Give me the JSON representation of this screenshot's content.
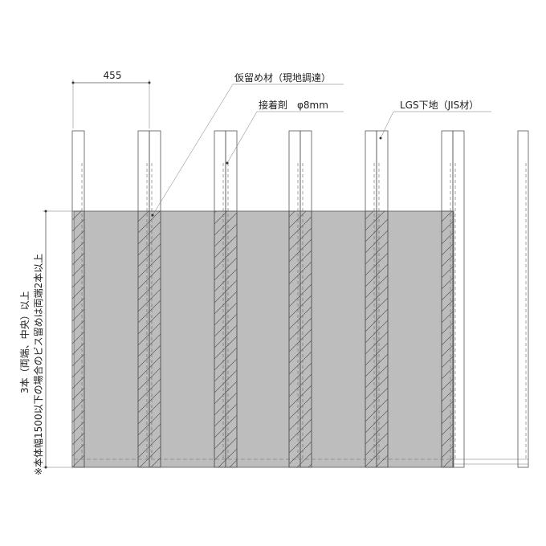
{
  "dimension": "455",
  "labels": {
    "temporary_fixing": "仮留め材（現地調達）",
    "adhesive": "接着剤　φ8mm",
    "lgs": "LGS下地（JIS材）"
  },
  "notes": [
    "3本（両端、中央）以上",
    "※本体幅1500以下の場合のビス留めは両端2本以上"
  ]
}
